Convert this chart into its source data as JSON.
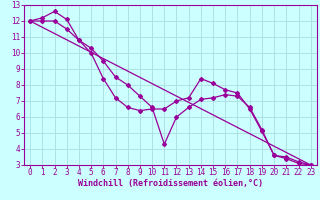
{
  "xlabel": "Windchill (Refroidissement éolien,°C)",
  "bg_color": "#ccffff",
  "grid_color": "#aadddd",
  "line_color": "#990099",
  "xlim": [
    -0.5,
    23.5
  ],
  "ylim": [
    3,
    13
  ],
  "xticks": [
    0,
    1,
    2,
    3,
    4,
    5,
    6,
    7,
    8,
    9,
    10,
    11,
    12,
    13,
    14,
    15,
    16,
    17,
    18,
    19,
    20,
    21,
    22,
    23
  ],
  "yticks": [
    3,
    4,
    5,
    6,
    7,
    8,
    9,
    10,
    11,
    12,
    13
  ],
  "series1_x": [
    0,
    1,
    2,
    3,
    4,
    5,
    6,
    7,
    8,
    9,
    10,
    11,
    12,
    13,
    14,
    15,
    16,
    17,
    18,
    19,
    20,
    21,
    22,
    23
  ],
  "series1_y": [
    12.0,
    12.2,
    12.6,
    12.1,
    10.8,
    10.0,
    8.4,
    7.2,
    6.6,
    6.4,
    6.5,
    6.5,
    7.0,
    7.2,
    8.4,
    8.1,
    7.7,
    7.5,
    6.5,
    5.1,
    3.6,
    3.4,
    3.1,
    3.0
  ],
  "series2_x": [
    0,
    1,
    2,
    3,
    4,
    5,
    6,
    7,
    8,
    9,
    10,
    11,
    12,
    13,
    14,
    15,
    16,
    17,
    18,
    19,
    20,
    21,
    22,
    23
  ],
  "series2_y": [
    12.0,
    12.0,
    12.0,
    11.5,
    10.8,
    10.3,
    9.5,
    8.5,
    8.0,
    7.3,
    6.6,
    4.3,
    6.0,
    6.6,
    7.1,
    7.2,
    7.4,
    7.3,
    6.6,
    5.2,
    3.6,
    3.5,
    3.2,
    3.0
  ],
  "series3_x": [
    0,
    23
  ],
  "series3_y": [
    12.0,
    3.0
  ],
  "xlabel_fontsize": 6,
  "tick_fontsize": 5.5
}
